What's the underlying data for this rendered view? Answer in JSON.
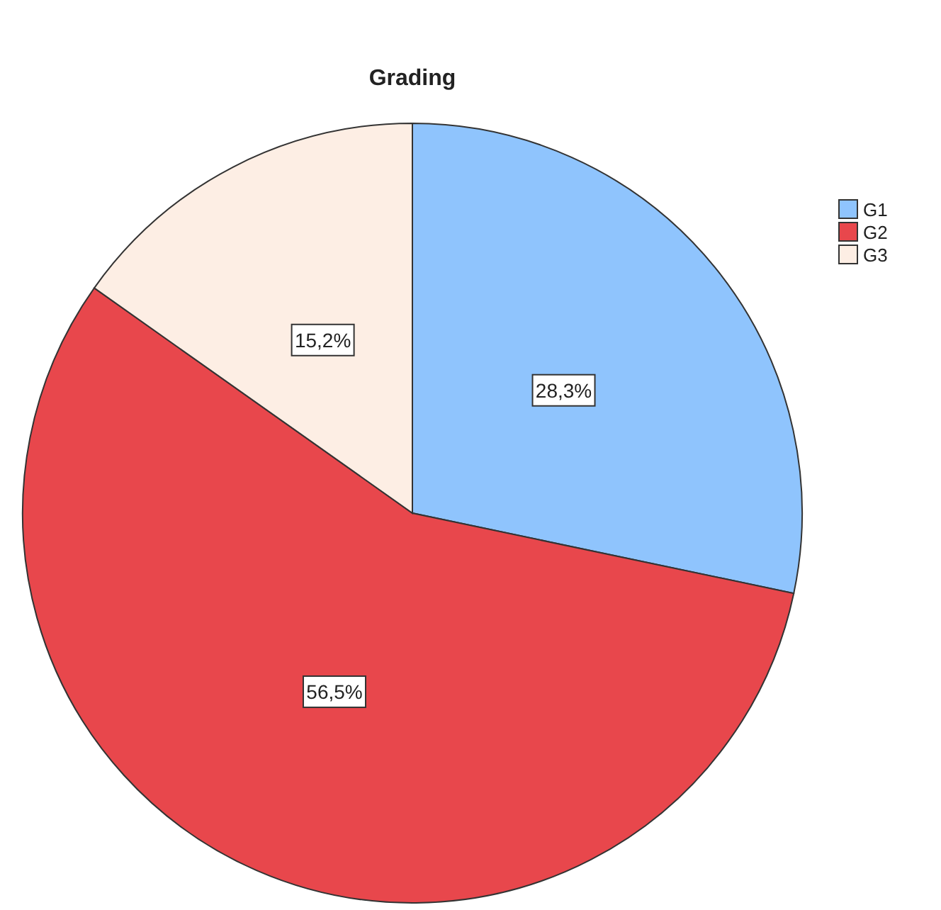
{
  "chart_data": {
    "type": "pie",
    "title": "Grading",
    "categories": [
      "G1",
      "G2",
      "G3"
    ],
    "values": [
      28.3,
      56.5,
      15.2
    ],
    "colors": [
      "#8fc4fd",
      "#e8474c",
      "#fdeee4"
    ],
    "value_labels": [
      "28,3%",
      "56,5%",
      "15,2%"
    ],
    "legend": "right"
  }
}
